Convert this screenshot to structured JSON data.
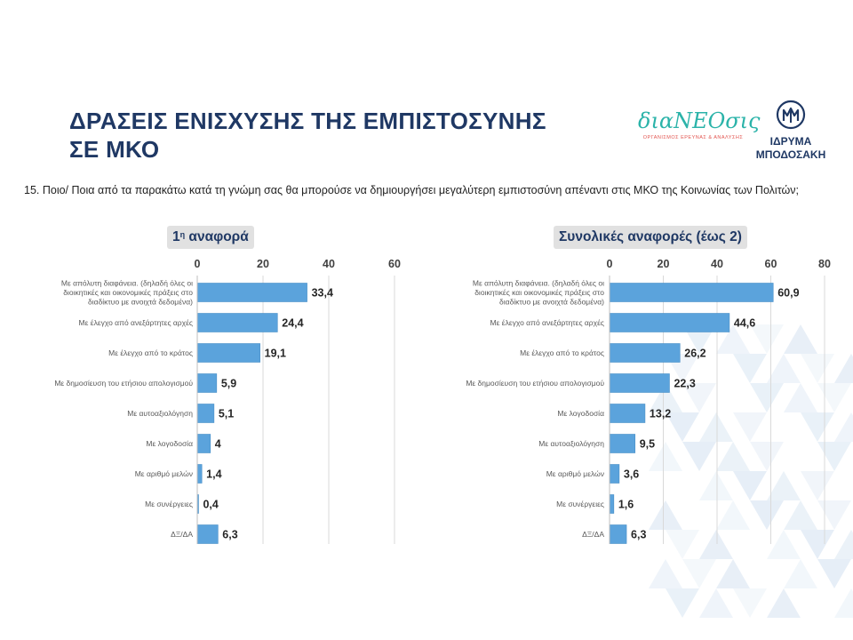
{
  "slide": {
    "title_lines": [
      "ΔΡΑΣΕΙΣ ΕΝΙΣΧΥΣΗΣ ΤΗΣ ΕΜΠΙΣΤΟΣΥΝΗΣ",
      "ΣΕ ΜΚΟ"
    ],
    "question": "15. Ποιο/ Ποια από τα παρακάτω  κατά τη γνώμη σας θα μπορούσε να δημιουργήσει μεγαλύτερη εμπιστοσύνη απέναντι στις ΜΚΟ της Κοινωνίας των Πολιτών;"
  },
  "logos": {
    "dianeosis_name": "διαΝΕΟσις",
    "dianeosis_sub": "ΟΡΓΑΝΙΣΜΟΣ ΕΡΕΥΝΑΣ & ΑΝΑΛΥΣΗΣ",
    "bodossaki_line1": "ΙΔΡΥΜΑ",
    "bodossaki_line2": "ΜΠΟΔΟΣΑΚΗ"
  },
  "colors": {
    "bar": "#5ba3dc",
    "bar_edge": "#4a8fc7",
    "title": "#1f3864",
    "deco": "#dbe7f3"
  },
  "chart_data": [
    {
      "type": "bar",
      "orientation": "horizontal",
      "title_main": "1",
      "title_sup": "η",
      "title_rest": " αναφορά",
      "xlim": [
        0,
        60
      ],
      "xticks": [
        0,
        20,
        40,
        60
      ],
      "grid": true,
      "categories": [
        [
          "Με απόλυτη διαφάνεια. (δηλαδή όλες οι",
          "διοικητικές και οικονομικές πράξεις στο",
          "διαδίκτυο με ανοιχτά δεδομένα)"
        ],
        [
          "Με έλεγχο από ανεξάρτητες αρχές"
        ],
        [
          "Με έλεγχο από το κράτος"
        ],
        [
          "Με δημοσίευση του ετήσιου απολογισμού"
        ],
        [
          "Με αυτοαξιολόγηση"
        ],
        [
          "Με λογοδοσία"
        ],
        [
          "Με αριθμό μελών"
        ],
        [
          "Με συνέργειες"
        ],
        [
          "ΔΞ/ΔΑ"
        ]
      ],
      "values": [
        33.4,
        24.4,
        19.1,
        5.9,
        5.1,
        4,
        1.4,
        0.4,
        6.3
      ],
      "value_labels": [
        "33,4",
        "24,4",
        "19,1",
        "5,9",
        "5,1",
        "4",
        "1,4",
        "0,4",
        "6,3"
      ]
    },
    {
      "type": "bar",
      "orientation": "horizontal",
      "title_main": "Συνολικές αναφορές (έως 2)",
      "title_sup": "",
      "title_rest": "",
      "xlim": [
        0,
        80
      ],
      "xticks": [
        0,
        20,
        40,
        60,
        80
      ],
      "grid": true,
      "categories": [
        [
          "Με απόλυτη διαφάνεια. (δηλαδή όλες οι",
          "διοικητικές και οικονομικές πράξεις στο",
          "διαδίκτυο με ανοιχτά δεδομένα)"
        ],
        [
          "Με έλεγχο από ανεξάρτητες αρχές"
        ],
        [
          "Με έλεγχο από το κράτος"
        ],
        [
          "Με δημοσίευση του ετήσιου απολογισμού"
        ],
        [
          "Με λογοδοσία"
        ],
        [
          "Με αυτοαξιολόγηση"
        ],
        [
          "Με αριθμό μελών"
        ],
        [
          "Με συνέργειες"
        ],
        [
          "ΔΞ/ΔΑ"
        ]
      ],
      "values": [
        60.9,
        44.6,
        26.2,
        22.3,
        13.2,
        9.5,
        3.6,
        1.6,
        6.3
      ],
      "value_labels": [
        "60,9",
        "44,6",
        "26,2",
        "22,3",
        "13,2",
        "9,5",
        "3,6",
        "1,6",
        "6,3"
      ]
    }
  ]
}
